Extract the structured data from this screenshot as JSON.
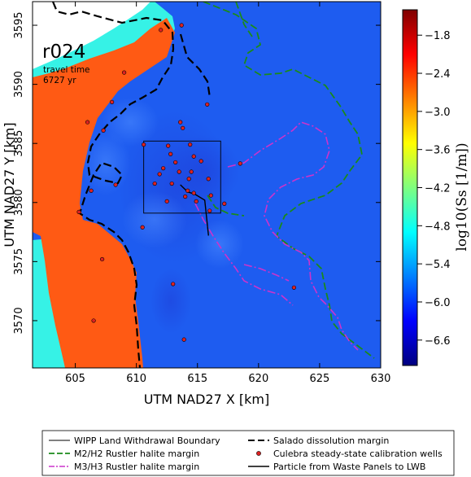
{
  "chart_data": {
    "type": "heatmap",
    "title": "r024",
    "subtitle_lines": [
      "travel time",
      "6727 yr"
    ],
    "xlabel": "UTM NAD27 X [km]",
    "ylabel": "UTM NAD27 Y [km]",
    "xlim": [
      601.5,
      630
    ],
    "ylim": [
      3566,
      3597
    ],
    "x_ticks": [
      "605",
      "610",
      "615",
      "620",
      "625",
      "630"
    ],
    "y_ticks": [
      "3570",
      "3575",
      "3580",
      "3585",
      "3590",
      "3595"
    ],
    "colorbar": {
      "label": "log10(Ss [1/m])",
      "range": [
        -7.0,
        -1.4
      ],
      "ticks": [
        "-1.8",
        "-2.4",
        "-3.0",
        "-3.6",
        "-4.2",
        "-4.8",
        "-5.4",
        "-6.0",
        "-6.6"
      ],
      "colors": [
        "#00007f",
        "#0000ff",
        "#007fff",
        "#00ffff",
        "#7fff7f",
        "#ffff00",
        "#ff7f00",
        "#ff0000",
        "#7f0000"
      ]
    },
    "zones": [
      {
        "name": "high storage (west)",
        "value": -2.1,
        "color": "#ff5a14"
      },
      {
        "name": "transition band",
        "value": -5.0,
        "color": "#36f2e6"
      },
      {
        "name": "background",
        "value": -6.5,
        "color": "#1e5cf0"
      }
    ],
    "wipp_boundary": {
      "x": [
        610.6,
        616.9
      ],
      "y": [
        3579.1,
        3585.2
      ]
    },
    "particle_path": {
      "x": [
        613.6,
        614.2,
        614.8,
        615.6,
        615.9
      ],
      "y": [
        3581.5,
        3580.9,
        3580.7,
        3580.2,
        3577.2
      ]
    },
    "wells": {
      "x": [
        612.0,
        613.7,
        609.0,
        608.0,
        606.0,
        607.3,
        615.8,
        613.6,
        613.8,
        612.6,
        614.4,
        610.6,
        612.8,
        614.7,
        615.3,
        613.2,
        612.2,
        611.9,
        613.5,
        614.5,
        614.3,
        615.9,
        611.5,
        612.9,
        614.2,
        614.7,
        614.0,
        612.5,
        616.1,
        614.9,
        616.0,
        617.2,
        618.5,
        610.5,
        606.3,
        608.3,
        605.3,
        622.9,
        607.2,
        613.0,
        606.5,
        613.9
      ],
      "y": [
        3594.6,
        3595.0,
        3591.0,
        3588.5,
        3586.8,
        3586.1,
        3588.3,
        3586.8,
        3586.3,
        3584.8,
        3584.9,
        3584.9,
        3584.1,
        3583.9,
        3583.5,
        3583.4,
        3582.9,
        3582.4,
        3582.6,
        3582.6,
        3582.0,
        3582.0,
        3581.6,
        3581.6,
        3581.0,
        3580.8,
        3580.5,
        3580.1,
        3580.6,
        3580.1,
        3579.3,
        3579.9,
        3583.3,
        3577.9,
        3581.0,
        3581.5,
        3579.2,
        3572.8,
        3575.2,
        3573.1,
        3570.0,
        3568.4
      ]
    },
    "legend": [
      "WIPP Land Withdrawal Boundary",
      "M2/H2 Rustler halite margin",
      "M3/H3 Rustler halite margin",
      "Salado dissolution margin",
      "Culebra steady-state calibration wells",
      "Particle from Waste Panels to LWB"
    ],
    "legend_placement": "bottom (below plot)",
    "grid": false
  }
}
